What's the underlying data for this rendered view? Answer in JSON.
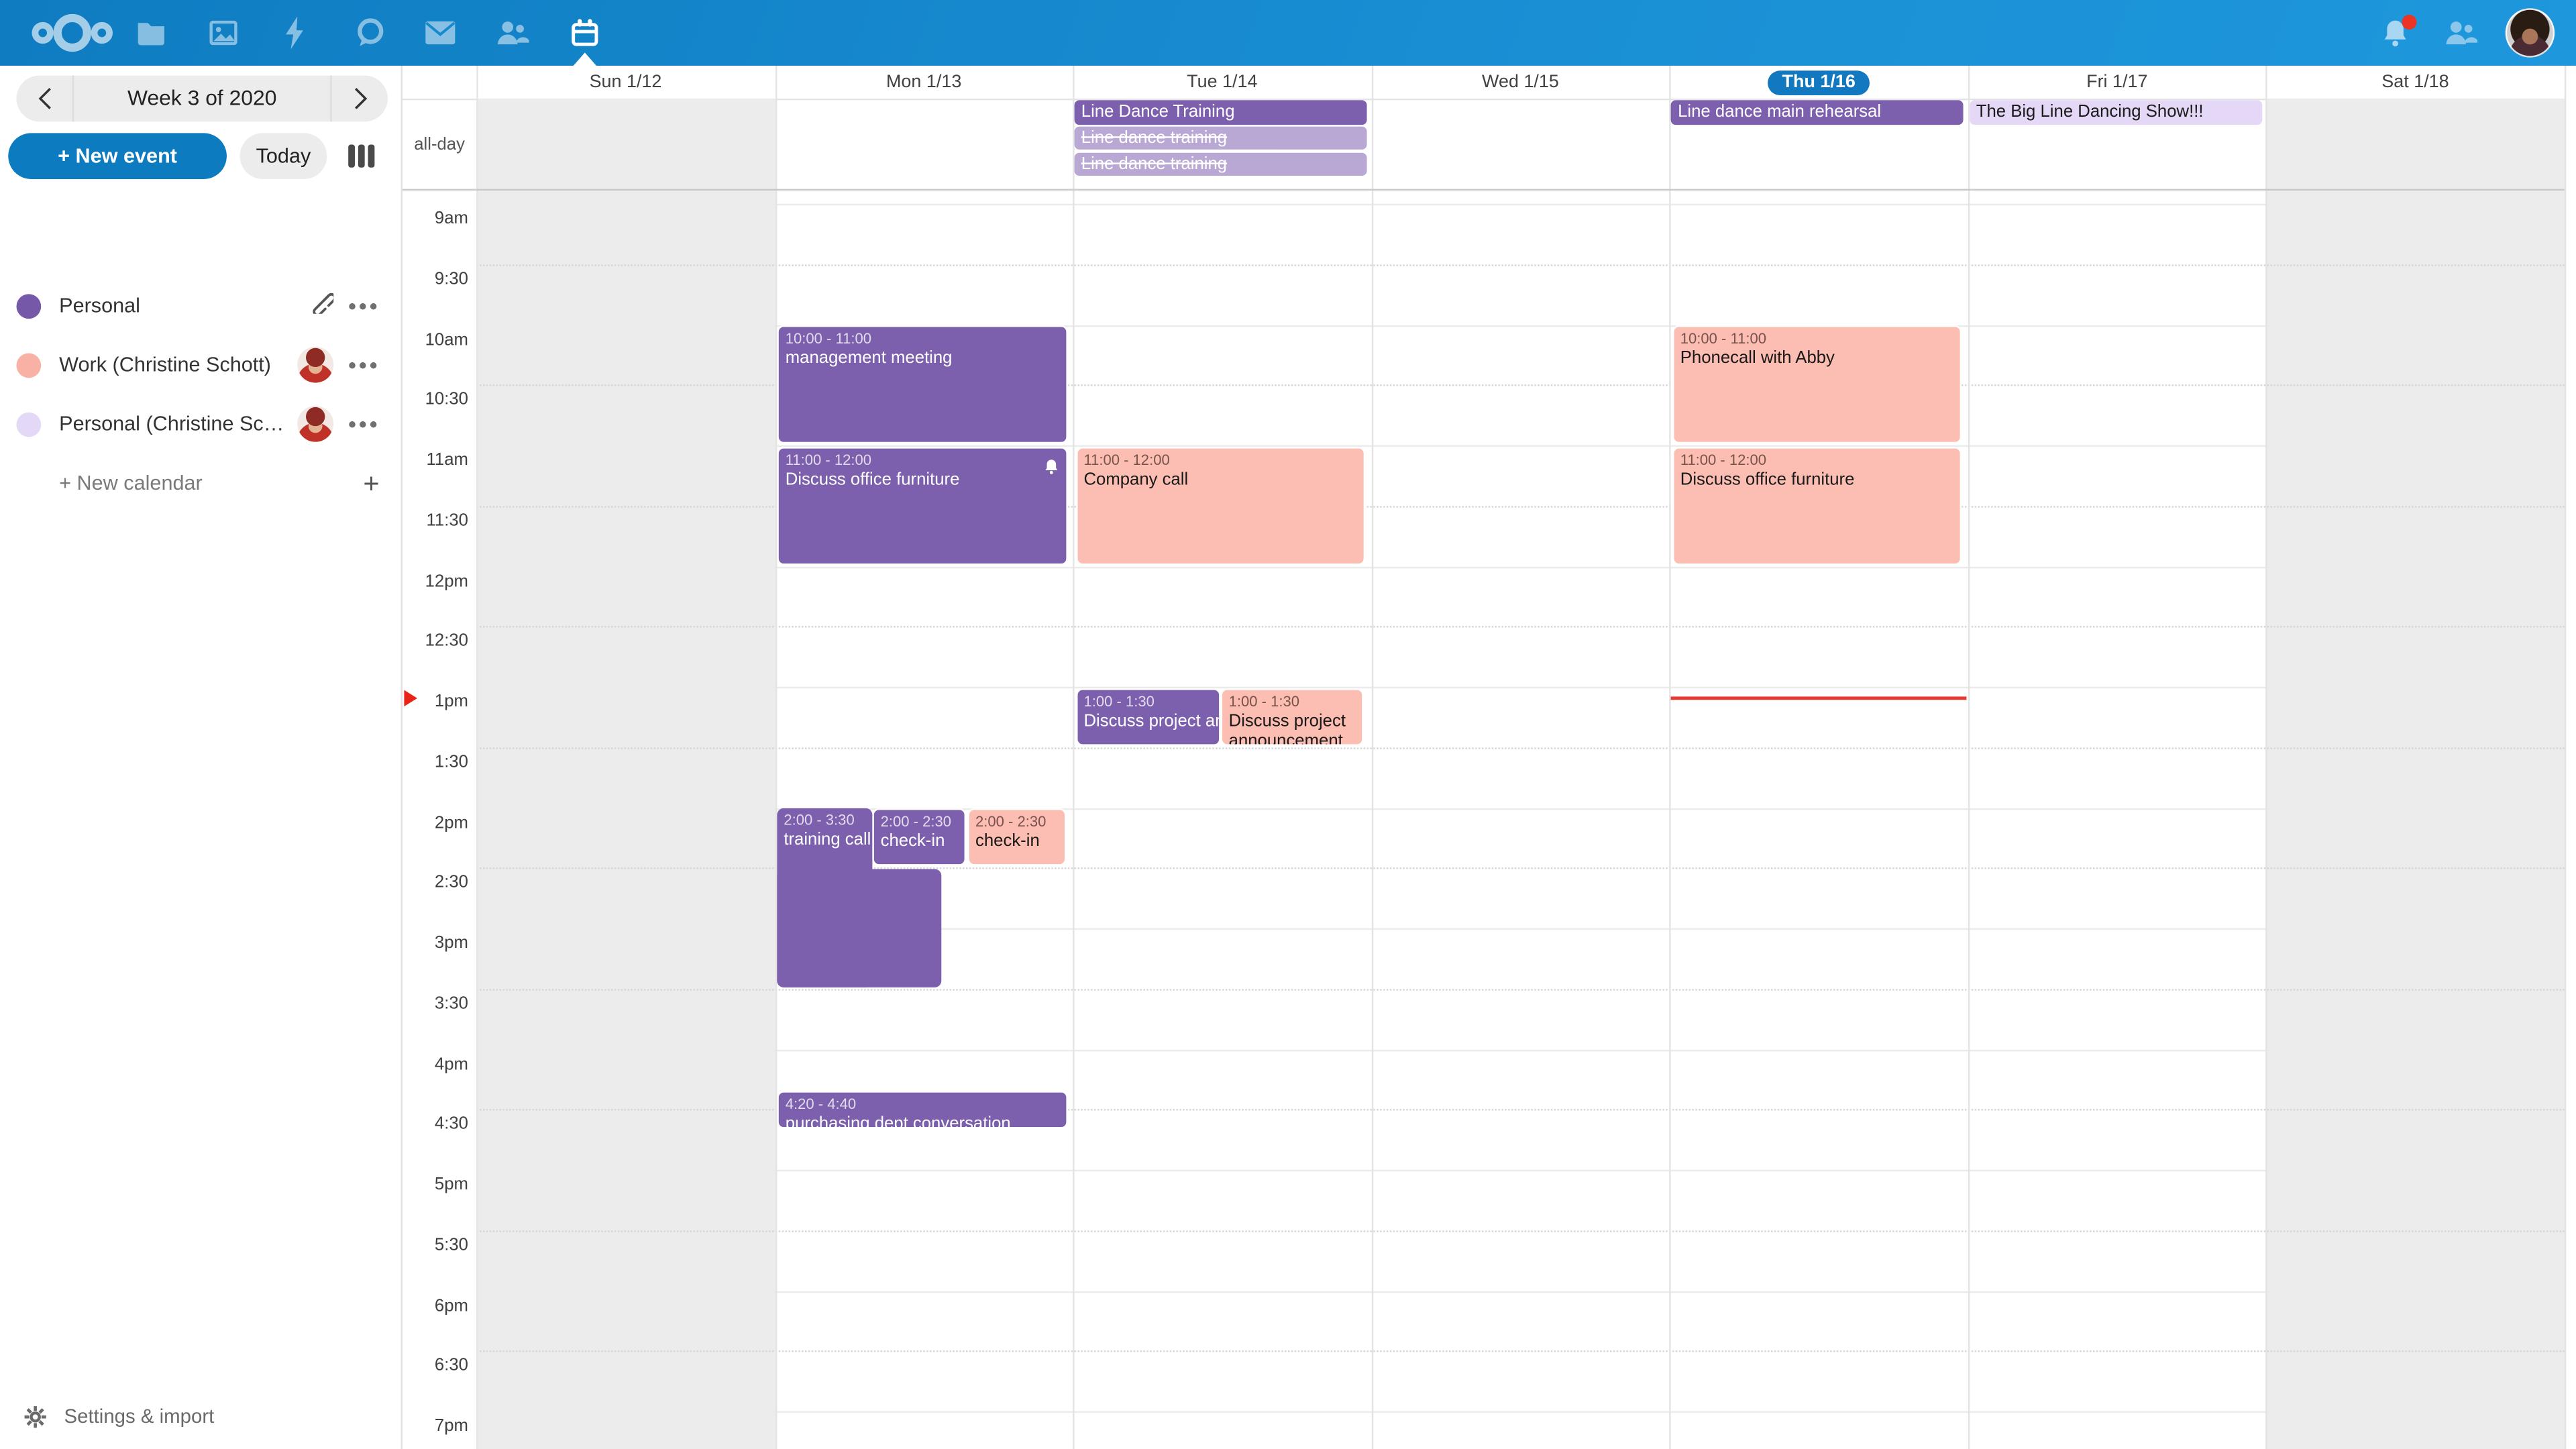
{
  "topbar": {
    "apps": [
      {
        "name": "files"
      },
      {
        "name": "photos"
      },
      {
        "name": "activity"
      },
      {
        "name": "talk"
      },
      {
        "name": "mail"
      },
      {
        "name": "contacts"
      },
      {
        "name": "calendar",
        "active": true
      }
    ],
    "right": [
      "notifications-bell",
      "contacts-menu",
      "user-avatar"
    ],
    "has_notification_dot": true
  },
  "sidebar": {
    "week_label": "Week 3 of 2020",
    "new_event_label": "+ New event",
    "today_label": "Today",
    "calendars": [
      {
        "name": "Personal",
        "dot_color": "#7559a8",
        "trailing": [
          "link",
          "menu"
        ]
      },
      {
        "name": "Work (Christine Schott)",
        "dot_color": "#f9b1a6",
        "trailing": [
          "avatar",
          "menu"
        ]
      },
      {
        "name": "Personal (Christine Schott)",
        "dot_color": "#e3d9f6",
        "trailing": [
          "avatar",
          "menu"
        ]
      }
    ],
    "new_calendar_label": "+ New calendar",
    "settings_label": "Settings & import"
  },
  "calendar": {
    "allday_label": "all-day",
    "days": [
      {
        "label": "Sun 1/12",
        "weekend": true
      },
      {
        "label": "Mon 1/13"
      },
      {
        "label": "Tue 1/14"
      },
      {
        "label": "Wed 1/15"
      },
      {
        "label": "Thu 1/16",
        "today": true
      },
      {
        "label": "Fri 1/17"
      },
      {
        "label": "Sat 1/18",
        "weekend": true
      }
    ],
    "times": [
      "9am",
      "9:30",
      "10am",
      "10:30",
      "11am",
      "11:30",
      "12pm",
      "12:30",
      "1pm",
      "1:30",
      "2pm",
      "2:30",
      "3pm",
      "3:30",
      "4pm",
      "4:30",
      "5pm",
      "5:30",
      "6pm",
      "6:30",
      "7pm"
    ],
    "allday_events": [
      {
        "day": 2,
        "title": "Line Dance Training",
        "kind": "purple-solid",
        "row": 0
      },
      {
        "day": 2,
        "title": "Line dance training",
        "kind": "strike",
        "row": 1
      },
      {
        "day": 2,
        "title": "Line dance training",
        "kind": "strike",
        "row": 2
      },
      {
        "day": 4,
        "title": "Line dance main rehearsal",
        "kind": "purple-solid",
        "row": 0
      },
      {
        "day": 5,
        "title": "The Big Line Dancing Show!!!",
        "kind": "lavender",
        "row": 0
      }
    ],
    "events": [
      {
        "day": 1,
        "time_label": "10:00 - 11:00",
        "title": "management meeting",
        "start": 600,
        "end": 660,
        "color": "purple"
      },
      {
        "day": 1,
        "time_label": "11:00 - 12:00",
        "title": "Discuss office furniture",
        "start": 660,
        "end": 720,
        "color": "purple",
        "alarm": true
      },
      {
        "day": 1,
        "time_label": "2:00 - 3:30",
        "title": "training call",
        "start": 840,
        "end": 930,
        "color": "purple",
        "wf": 0.328,
        "noborder": true,
        "ext": {
          "start": 870,
          "end": 930,
          "wf": 0.565
        }
      },
      {
        "day": 1,
        "time_label": "2:00 - 2:30",
        "title": "check-in",
        "start": 840,
        "end": 870,
        "color": "purple",
        "lf": 0.328,
        "wf": 0.328
      },
      {
        "day": 1,
        "time_label": "2:00 - 2:30",
        "title": "check-in",
        "start": 840,
        "end": 870,
        "color": "salmon",
        "lf": 0.655,
        "wf": 0.345
      },
      {
        "day": 1,
        "time_label": "4:20 - 4:40",
        "title": "purchasing dept conversation",
        "start": 980,
        "end": 1000,
        "color": "purple"
      },
      {
        "day": 2,
        "time_label": "11:00 - 12:00",
        "title": "Company call",
        "start": 660,
        "end": 720,
        "color": "salmon"
      },
      {
        "day": 2,
        "time_label": "1:00 - 1:30",
        "title": "Discuss project announcement",
        "start": 780,
        "end": 810,
        "color": "purple",
        "wf": 0.5
      },
      {
        "day": 2,
        "time_label": "1:00 - 1:30",
        "title": "Discuss project announcement",
        "start": 780,
        "end": 810,
        "color": "salmon",
        "lf": 0.5,
        "wf": 0.5,
        "wrap": true
      },
      {
        "day": 4,
        "time_label": "10:00 - 11:00",
        "title": "Phonecall with Abby",
        "start": 600,
        "end": 660,
        "color": "salmon"
      },
      {
        "day": 4,
        "time_label": "11:00 - 12:00",
        "title": "Discuss office furniture",
        "start": 660,
        "end": 720,
        "color": "salmon"
      }
    ],
    "current_time_marker": {
      "day": 4,
      "minutes": 785
    }
  },
  "colors": {
    "purple": "#7c5fad",
    "light_purple": "#b9a8d3",
    "lavender": "#e4d8f6",
    "salmon": "#fcbdb2",
    "accent_blue": "#0d7bbf",
    "today_pill": "#1278c0",
    "now_red": "#e8382f",
    "weekend_gray": "#ececec"
  }
}
